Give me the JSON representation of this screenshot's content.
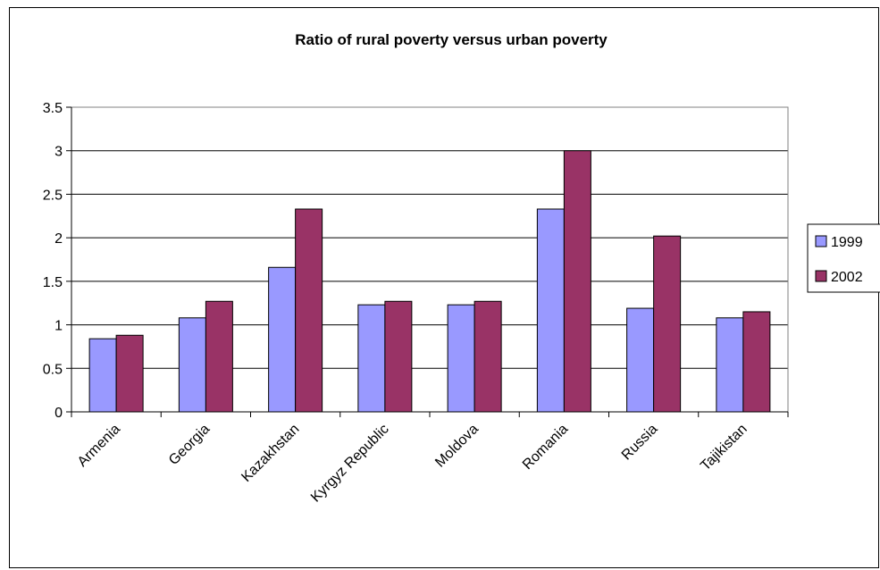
{
  "chart_data": {
    "type": "bar",
    "title": "Ratio of rural poverty versus urban poverty",
    "categories": [
      "Armenia",
      "Georgia",
      "Kazakhstan",
      "Kyrgyz Republic",
      "Moldova",
      "Romania",
      "Russia",
      "Tajikistan"
    ],
    "series": [
      {
        "name": "1999",
        "color": "#9999FF",
        "values": [
          0.84,
          1.08,
          1.66,
          1.23,
          1.23,
          2.33,
          1.19,
          1.08
        ]
      },
      {
        "name": "2002",
        "color": "#993366",
        "values": [
          0.88,
          1.27,
          2.33,
          1.27,
          1.27,
          3.0,
          2.02,
          1.15
        ]
      }
    ],
    "ylim": [
      0,
      3.5
    ],
    "yticks": [
      "0",
      "0.5",
      "1",
      "1.5",
      "2",
      "2.5",
      "3",
      "3.5"
    ],
    "grid": true,
    "legend_position": "right"
  }
}
